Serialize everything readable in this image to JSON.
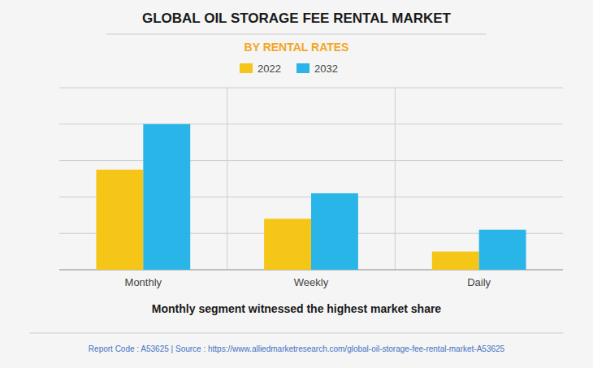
{
  "chart_data": {
    "type": "bar",
    "title": "GLOBAL OIL STORAGE FEE RENTAL MARKET",
    "subtitle": "BY RENTAL RATES",
    "categories": [
      "Monthly",
      "Weekly",
      "Daily"
    ],
    "series": [
      {
        "name": "2022",
        "color": "#F5C518",
        "values": [
          55,
          28,
          10
        ]
      },
      {
        "name": "2032",
        "color": "#29B5E8",
        "values": [
          80,
          42,
          22
        ]
      }
    ],
    "ylim": [
      0,
      100
    ],
    "yticks": [
      0,
      20,
      40,
      60,
      80,
      100
    ],
    "grid": true,
    "legend": "top",
    "tick_labels": "x",
    "annotations": [
      "Monthly segment witnessed the highest market share",
      "Report Code : A53625  |  Source : https://www.alliedmarketresearch.com/global-oil-storage-fee-rental-market-A53625"
    ]
  }
}
